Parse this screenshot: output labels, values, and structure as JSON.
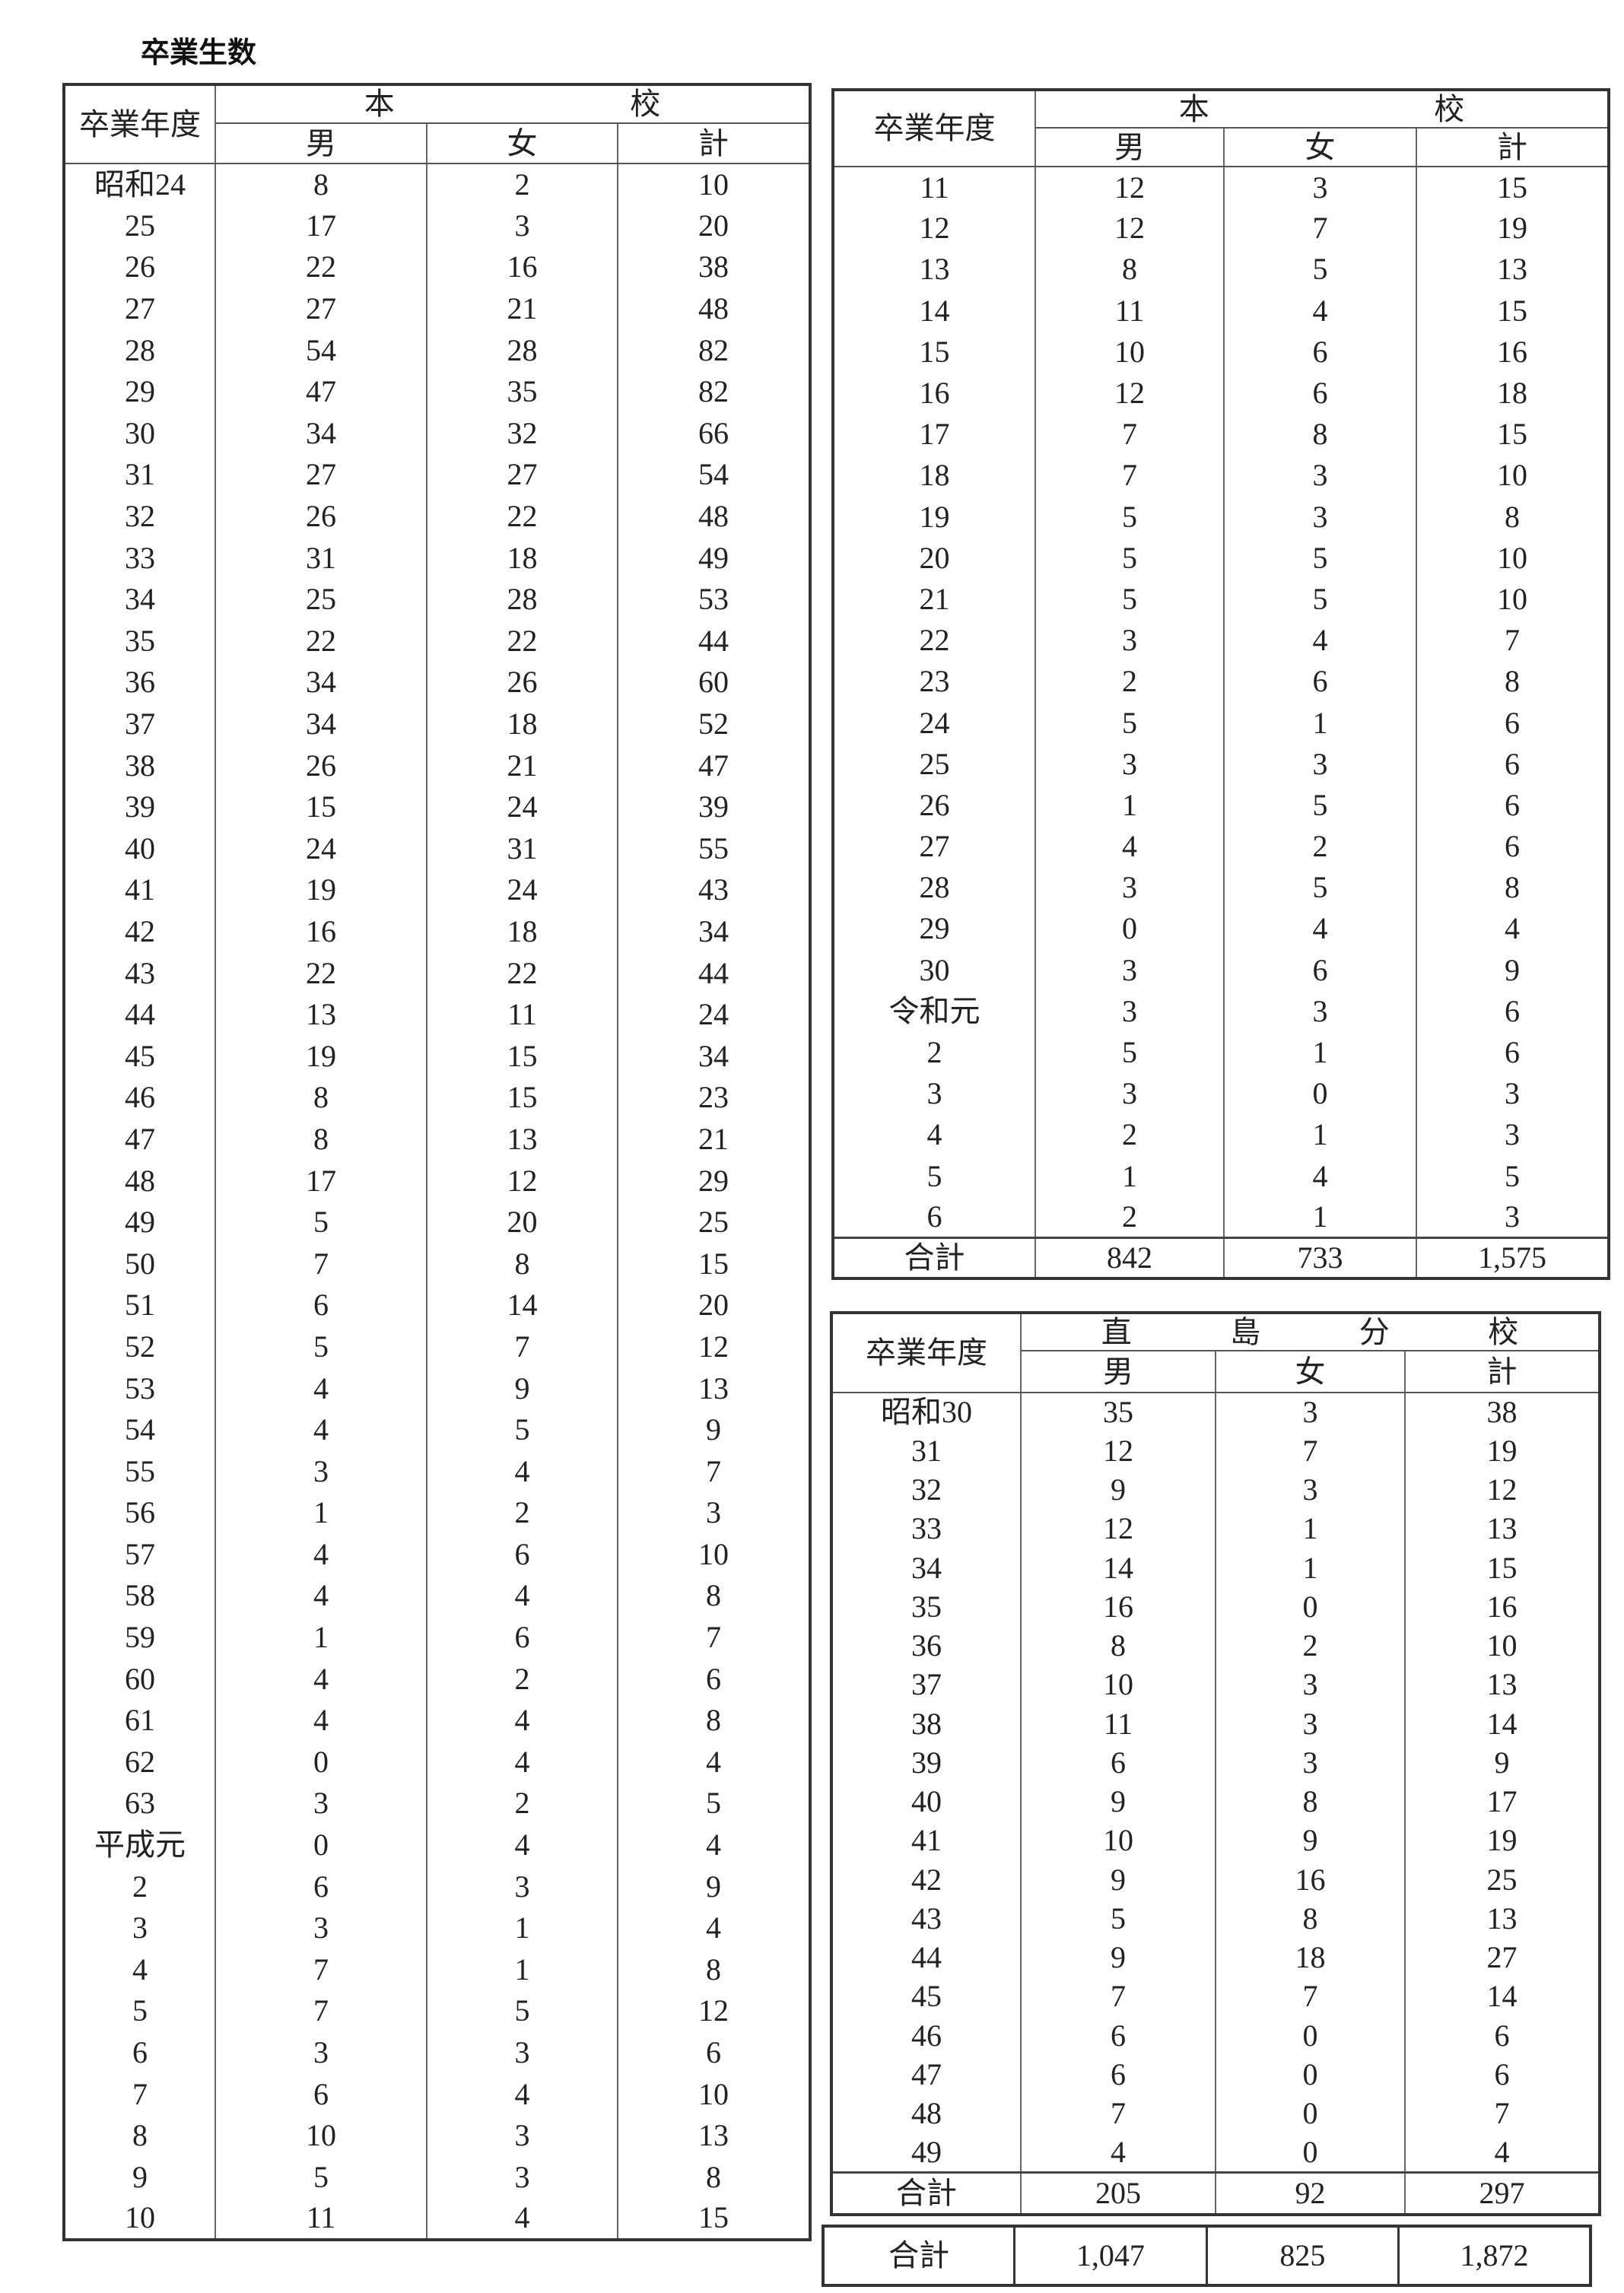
{
  "title": "卒業生数",
  "header": {
    "year_label": "卒業年度",
    "columns": [
      "男",
      "女",
      "計"
    ],
    "total_label": "合計"
  },
  "tables": [
    {
      "group_label": [
        "本",
        "校"
      ],
      "rows": [
        [
          "昭和24",
          "8",
          "2",
          "10"
        ],
        [
          "25",
          "17",
          "3",
          "20"
        ],
        [
          "26",
          "22",
          "16",
          "38"
        ],
        [
          "27",
          "27",
          "21",
          "48"
        ],
        [
          "28",
          "54",
          "28",
          "82"
        ],
        [
          "29",
          "47",
          "35",
          "82"
        ],
        [
          "30",
          "34",
          "32",
          "66"
        ],
        [
          "31",
          "27",
          "27",
          "54"
        ],
        [
          "32",
          "26",
          "22",
          "48"
        ],
        [
          "33",
          "31",
          "18",
          "49"
        ],
        [
          "34",
          "25",
          "28",
          "53"
        ],
        [
          "35",
          "22",
          "22",
          "44"
        ],
        [
          "36",
          "34",
          "26",
          "60"
        ],
        [
          "37",
          "34",
          "18",
          "52"
        ],
        [
          "38",
          "26",
          "21",
          "47"
        ],
        [
          "39",
          "15",
          "24",
          "39"
        ],
        [
          "40",
          "24",
          "31",
          "55"
        ],
        [
          "41",
          "19",
          "24",
          "43"
        ],
        [
          "42",
          "16",
          "18",
          "34"
        ],
        [
          "43",
          "22",
          "22",
          "44"
        ],
        [
          "44",
          "13",
          "11",
          "24"
        ],
        [
          "45",
          "19",
          "15",
          "34"
        ],
        [
          "46",
          "8",
          "15",
          "23"
        ],
        [
          "47",
          "8",
          "13",
          "21"
        ],
        [
          "48",
          "17",
          "12",
          "29"
        ],
        [
          "49",
          "5",
          "20",
          "25"
        ],
        [
          "50",
          "7",
          "8",
          "15"
        ],
        [
          "51",
          "6",
          "14",
          "20"
        ],
        [
          "52",
          "5",
          "7",
          "12"
        ],
        [
          "53",
          "4",
          "9",
          "13"
        ],
        [
          "54",
          "4",
          "5",
          "9"
        ],
        [
          "55",
          "3",
          "4",
          "7"
        ],
        [
          "56",
          "1",
          "2",
          "3"
        ],
        [
          "57",
          "4",
          "6",
          "10"
        ],
        [
          "58",
          "4",
          "4",
          "8"
        ],
        [
          "59",
          "1",
          "6",
          "7"
        ],
        [
          "60",
          "4",
          "2",
          "6"
        ],
        [
          "61",
          "4",
          "4",
          "8"
        ],
        [
          "62",
          "0",
          "4",
          "4"
        ],
        [
          "63",
          "3",
          "2",
          "5"
        ],
        [
          "平成元",
          "0",
          "4",
          "4"
        ],
        [
          "2",
          "6",
          "3",
          "9"
        ],
        [
          "3",
          "3",
          "1",
          "4"
        ],
        [
          "4",
          "7",
          "1",
          "8"
        ],
        [
          "5",
          "7",
          "5",
          "12"
        ],
        [
          "6",
          "3",
          "3",
          "6"
        ],
        [
          "7",
          "6",
          "4",
          "10"
        ],
        [
          "8",
          "10",
          "3",
          "13"
        ],
        [
          "9",
          "5",
          "3",
          "8"
        ],
        [
          "10",
          "11",
          "4",
          "15"
        ]
      ]
    },
    {
      "group_label": [
        "本",
        "校"
      ],
      "rows": [
        [
          "11",
          "12",
          "3",
          "15"
        ],
        [
          "12",
          "12",
          "7",
          "19"
        ],
        [
          "13",
          "8",
          "5",
          "13"
        ],
        [
          "14",
          "11",
          "4",
          "15"
        ],
        [
          "15",
          "10",
          "6",
          "16"
        ],
        [
          "16",
          "12",
          "6",
          "18"
        ],
        [
          "17",
          "7",
          "8",
          "15"
        ],
        [
          "18",
          "7",
          "3",
          "10"
        ],
        [
          "19",
          "5",
          "3",
          "8"
        ],
        [
          "20",
          "5",
          "5",
          "10"
        ],
        [
          "21",
          "5",
          "5",
          "10"
        ],
        [
          "22",
          "3",
          "4",
          "7"
        ],
        [
          "23",
          "2",
          "6",
          "8"
        ],
        [
          "24",
          "5",
          "1",
          "6"
        ],
        [
          "25",
          "3",
          "3",
          "6"
        ],
        [
          "26",
          "1",
          "5",
          "6"
        ],
        [
          "27",
          "4",
          "2",
          "6"
        ],
        [
          "28",
          "3",
          "5",
          "8"
        ],
        [
          "29",
          "0",
          "4",
          "4"
        ],
        [
          "30",
          "3",
          "6",
          "9"
        ],
        [
          "令和元",
          "3",
          "3",
          "6"
        ],
        [
          "2",
          "5",
          "1",
          "6"
        ],
        [
          "3",
          "3",
          "0",
          "3"
        ],
        [
          "4",
          "2",
          "1",
          "3"
        ],
        [
          "5",
          "1",
          "4",
          "5"
        ],
        [
          "6",
          "2",
          "1",
          "3"
        ]
      ],
      "total": [
        "842",
        "733",
        "1,575"
      ]
    },
    {
      "group_label": [
        "直",
        "島",
        "分",
        "校"
      ],
      "rows": [
        [
          "昭和30",
          "35",
          "3",
          "38"
        ],
        [
          "31",
          "12",
          "7",
          "19"
        ],
        [
          "32",
          "9",
          "3",
          "12"
        ],
        [
          "33",
          "12",
          "1",
          "13"
        ],
        [
          "34",
          "14",
          "1",
          "15"
        ],
        [
          "35",
          "16",
          "0",
          "16"
        ],
        [
          "36",
          "8",
          "2",
          "10"
        ],
        [
          "37",
          "10",
          "3",
          "13"
        ],
        [
          "38",
          "11",
          "3",
          "14"
        ],
        [
          "39",
          "6",
          "3",
          "9"
        ],
        [
          "40",
          "9",
          "8",
          "17"
        ],
        [
          "41",
          "10",
          "9",
          "19"
        ],
        [
          "42",
          "9",
          "16",
          "25"
        ],
        [
          "43",
          "5",
          "8",
          "13"
        ],
        [
          "44",
          "9",
          "18",
          "27"
        ],
        [
          "45",
          "7",
          "7",
          "14"
        ],
        [
          "46",
          "6",
          "0",
          "6"
        ],
        [
          "47",
          "6",
          "0",
          "6"
        ],
        [
          "48",
          "7",
          "0",
          "7"
        ],
        [
          "49",
          "4",
          "0",
          "4"
        ]
      ],
      "total": [
        "205",
        "92",
        "297"
      ]
    }
  ],
  "grand_total": [
    "1,047",
    "825",
    "1,872"
  ]
}
